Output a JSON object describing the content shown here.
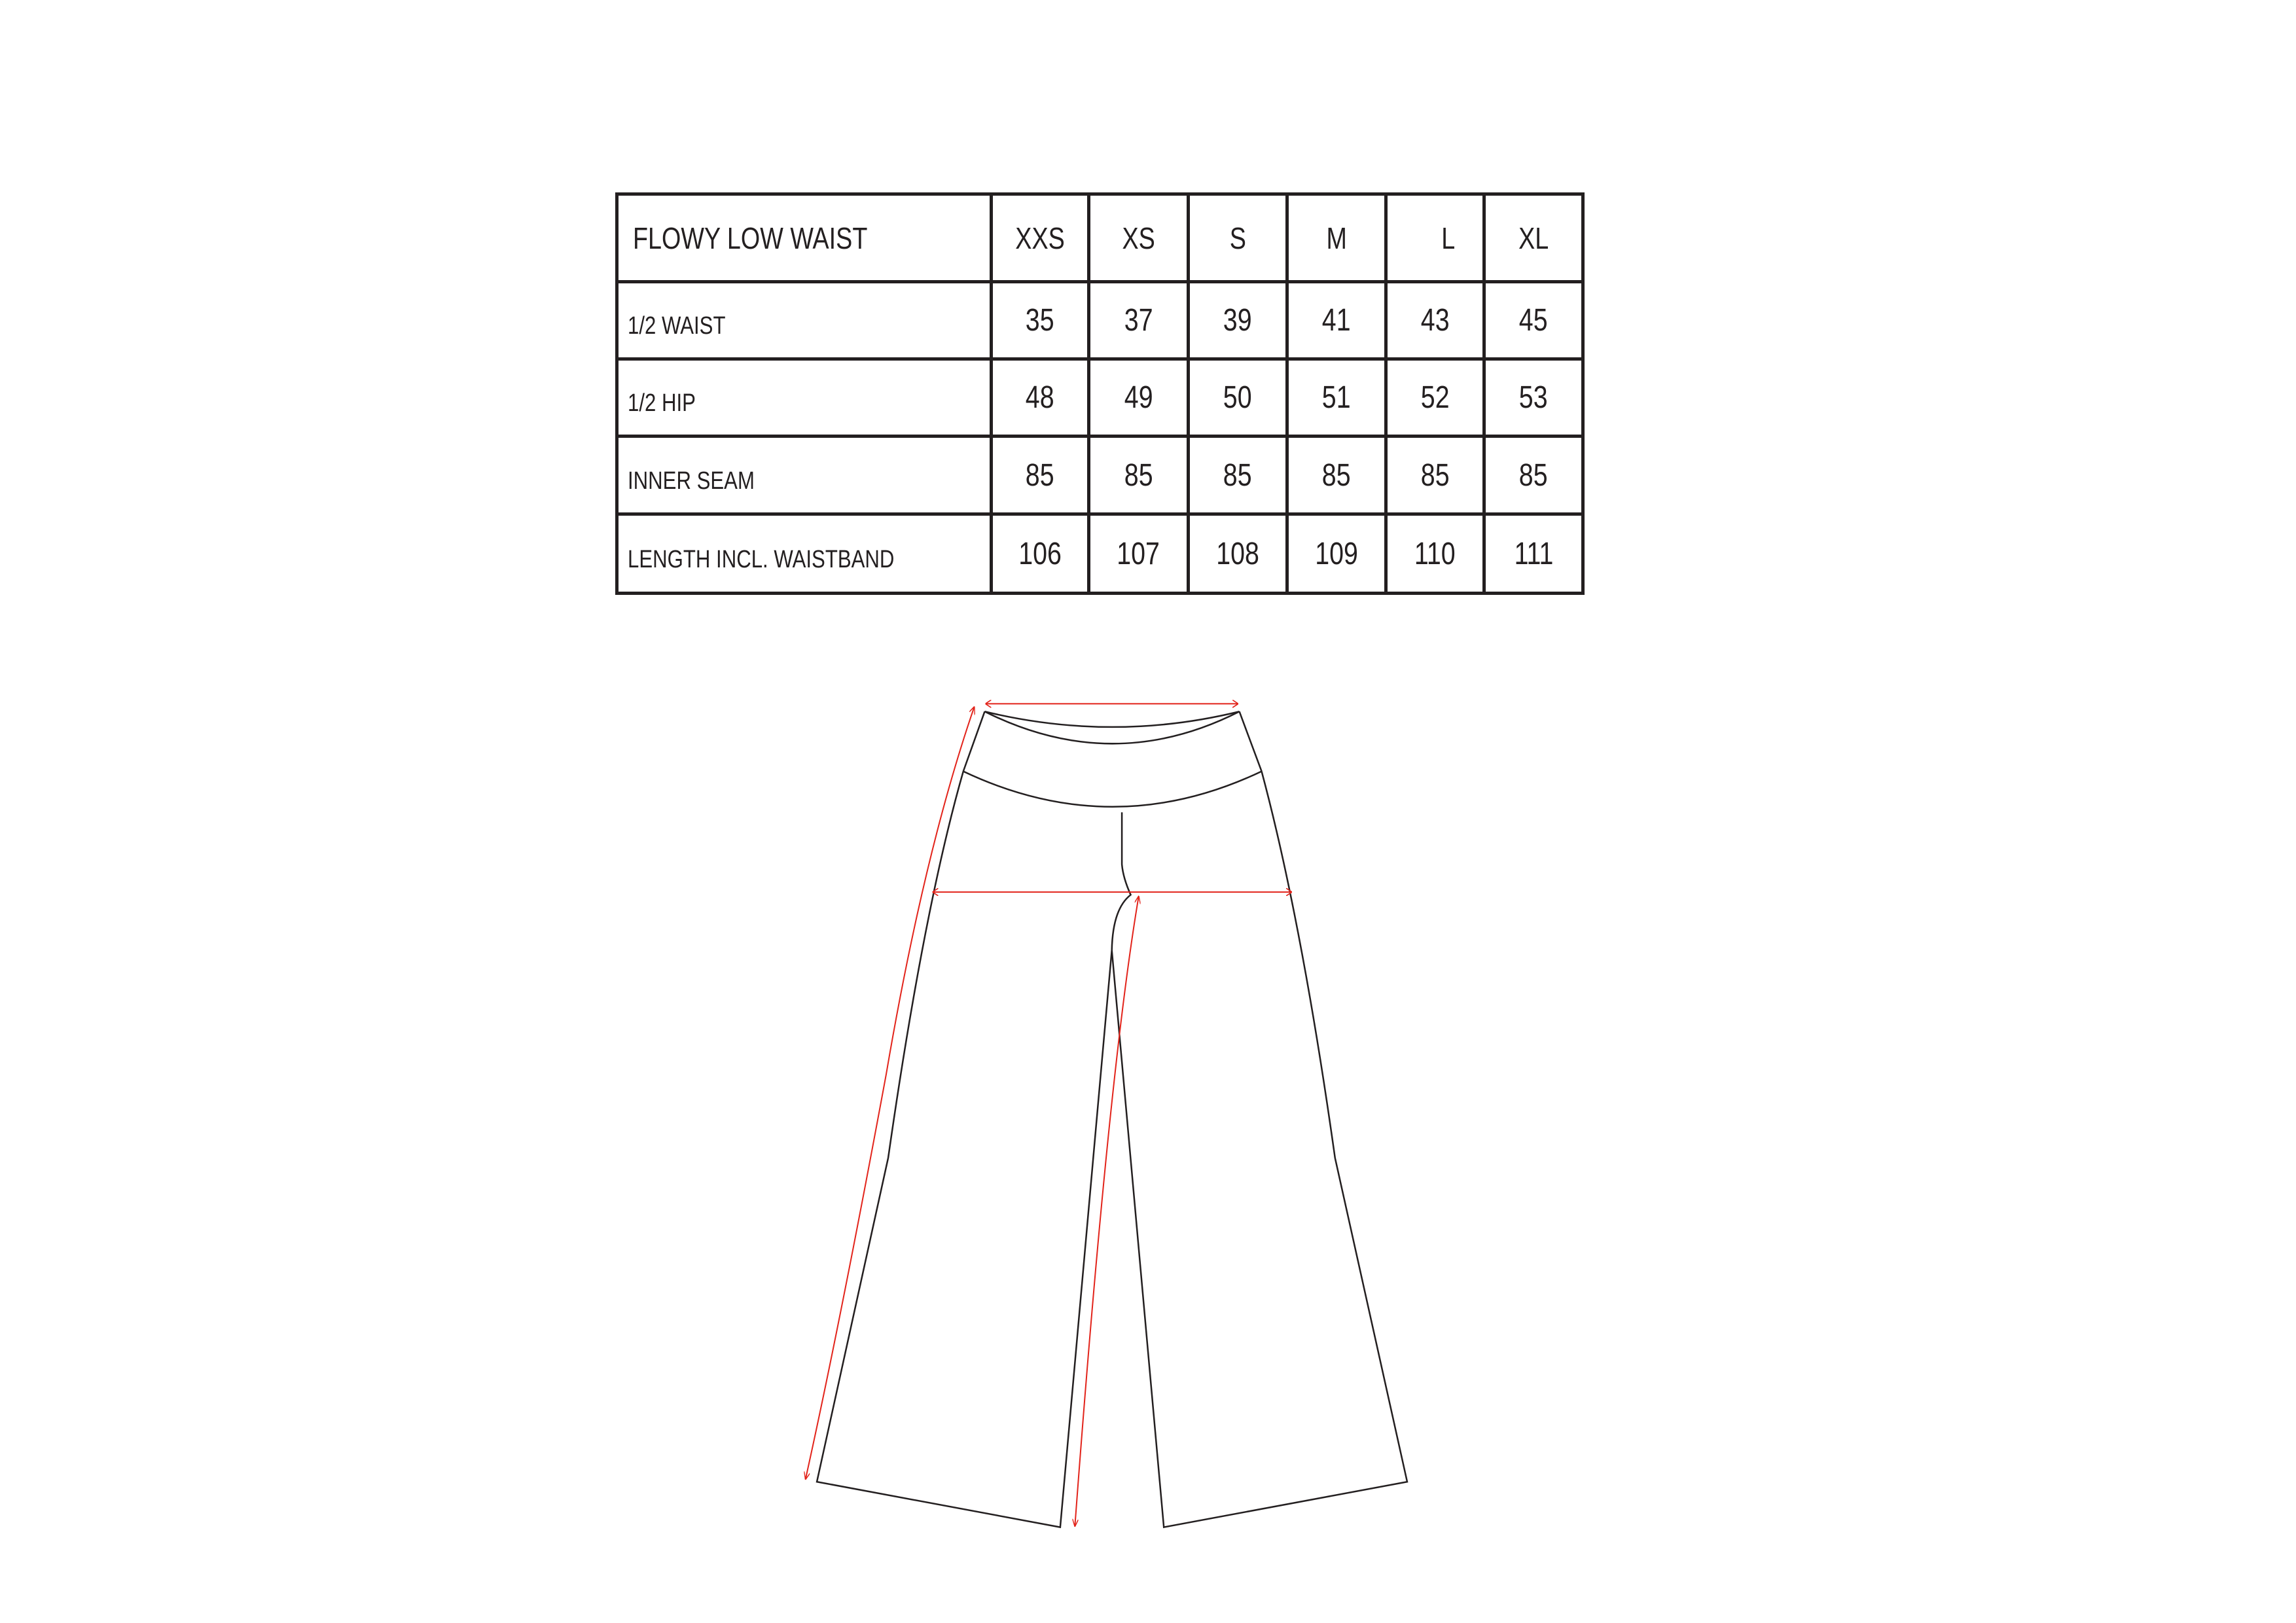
{
  "size_chart": {
    "title": "FLOWY LOW WAIST",
    "sizes": [
      "XXS",
      "XS",
      "S",
      "M",
      "L",
      "XL"
    ],
    "rows": [
      {
        "label": "1/2 WAIST",
        "values": [
          "35",
          "37",
          "39",
          "41",
          "43",
          "45"
        ]
      },
      {
        "label": "1/2 HIP",
        "values": [
          "48",
          "49",
          "50",
          "51",
          "52",
          "53"
        ]
      },
      {
        "label": "INNER SEAM",
        "values": [
          "85",
          "85",
          "85",
          "85",
          "85",
          "85"
        ]
      },
      {
        "label": "LENGTH INCL. WAISTBAND",
        "values": [
          "106",
          "107",
          "108",
          "109",
          "110",
          "111"
        ]
      }
    ]
  },
  "diagram": {
    "outline_color": "#231f20",
    "measure_color": "#e2231a"
  }
}
